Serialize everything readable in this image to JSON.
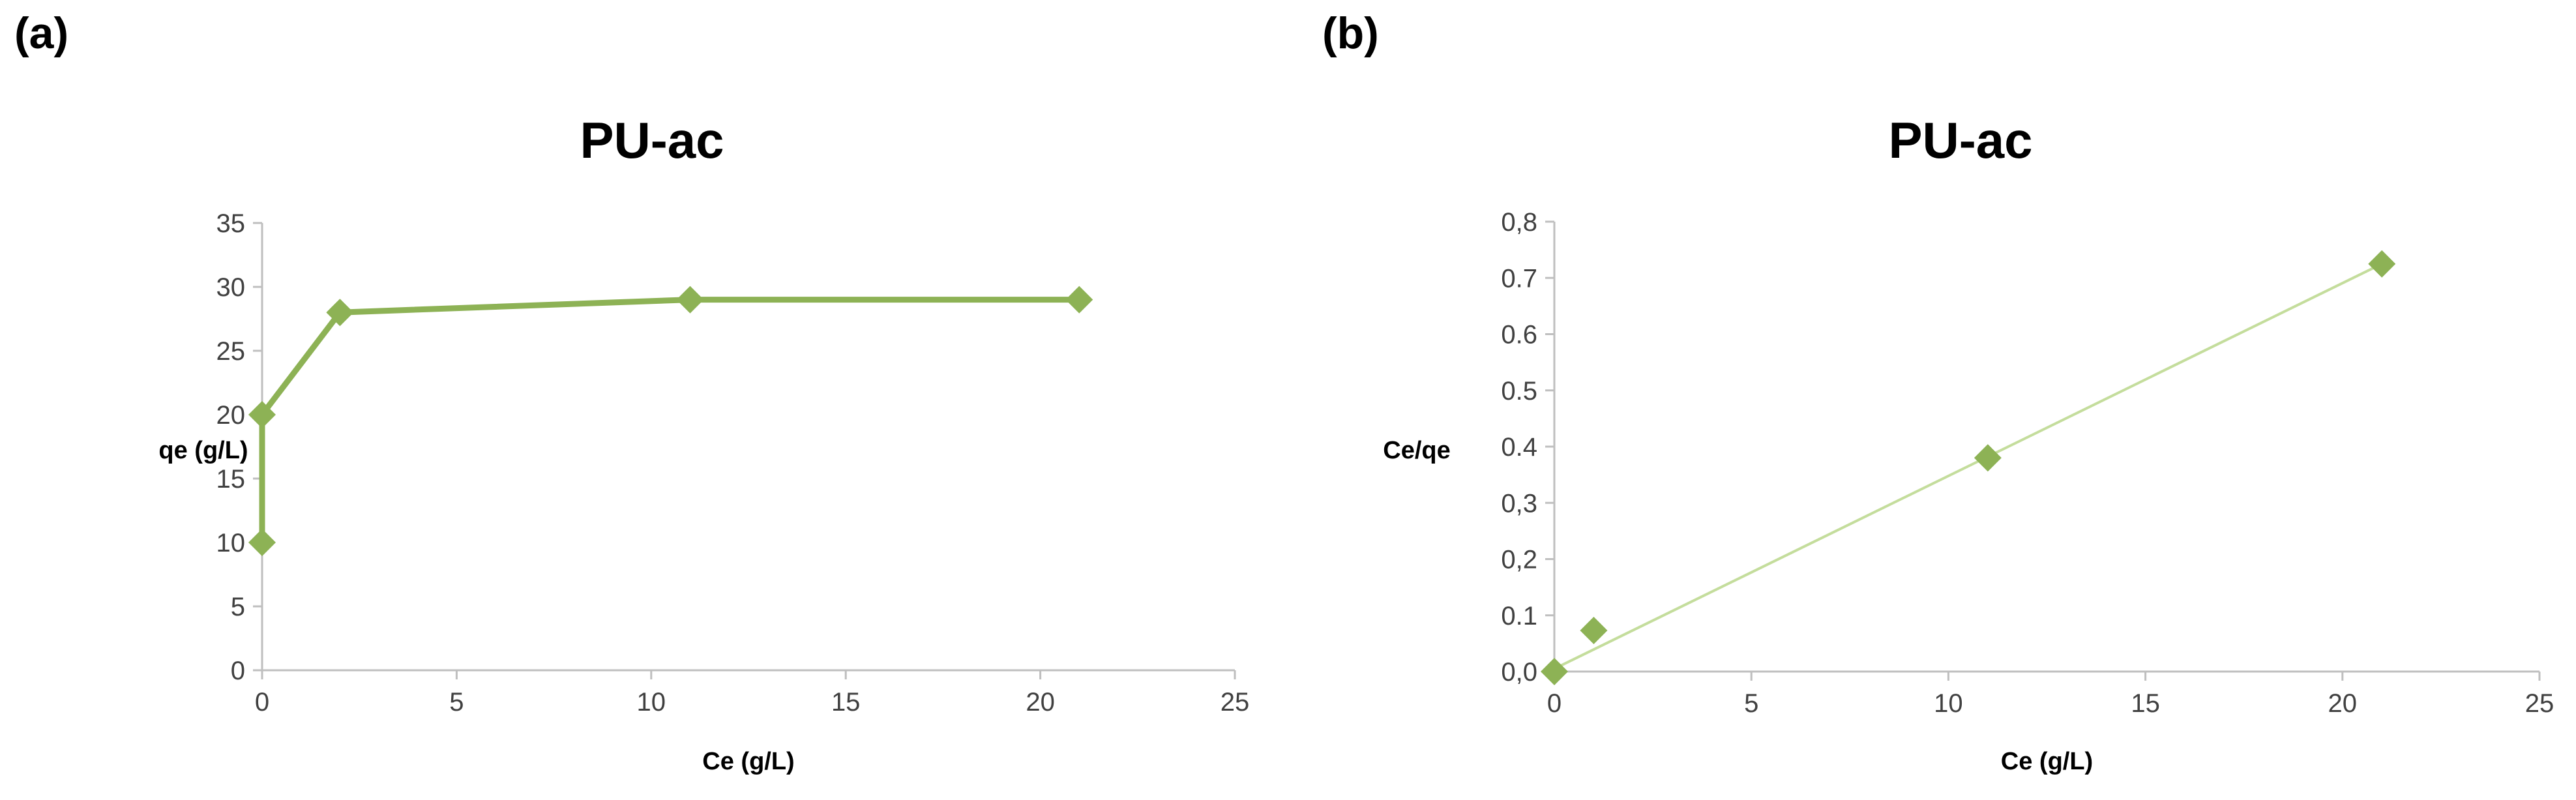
{
  "panel_labels": [
    "(a)",
    "(b)"
  ],
  "chart_data": [
    {
      "type": "line",
      "title": "PU-ac",
      "xlabel": "Ce (g/L)",
      "ylabel": "qe (g/L)",
      "xlim": [
        0,
        25
      ],
      "ylim": [
        0,
        35
      ],
      "xticks": [
        "0",
        "5",
        "10",
        "15",
        "20",
        "25"
      ],
      "yticks": [
        "0",
        "5",
        "10",
        "15",
        "20",
        "25",
        "30",
        "35"
      ],
      "grid": false,
      "color": "#8db255",
      "series": [
        {
          "x": [
            0,
            0,
            2,
            11,
            21
          ],
          "y": [
            10,
            20,
            28,
            29,
            29
          ]
        }
      ]
    },
    {
      "type": "scatter",
      "title": "PU-ac",
      "xlabel": "Ce (g/L)",
      "ylabel": "Ce/qe",
      "xlim": [
        0,
        25
      ],
      "ylim": [
        0,
        0.8
      ],
      "xticks": [
        "0",
        "5",
        "10",
        "15",
        "20",
        "25"
      ],
      "yticks": [
        "0,0",
        "0.1",
        "0,2",
        "0,3",
        "0.4",
        "0.5",
        "0.6",
        "0.7",
        "0,8"
      ],
      "grid": false,
      "color": "#8db255",
      "trendline_color": "#c4dd9c",
      "trendline": {
        "x": [
          0,
          21
        ],
        "y": [
          0.005,
          0.725
        ]
      },
      "series": [
        {
          "x": [
            0,
            1,
            11,
            21
          ],
          "y": [
            0.0,
            0.073,
            0.38,
            0.725
          ]
        }
      ]
    }
  ]
}
